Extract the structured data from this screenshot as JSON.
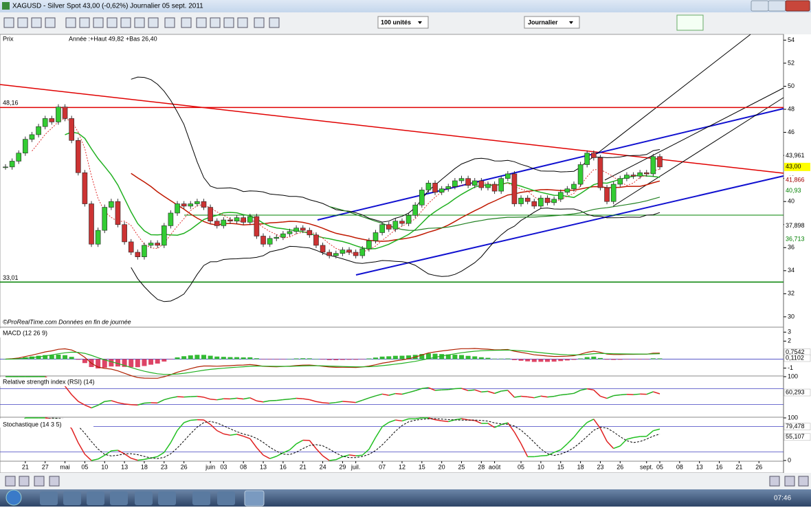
{
  "window": {
    "title": "XAGUSD - Silver Spot    43,00 (-0,62%)    Journalier  05 sept. 2011"
  },
  "toolbar": {
    "units": "100 unités",
    "period": "Journalier"
  },
  "chart_data": {
    "type": "candlestick",
    "title": "Prix",
    "subtitle": "Année :+Haut 49,82 +Bas 26,40",
    "annotation": "©ProRealTime.com  Données en fin de journée",
    "categories": [
      null,
      null,
      null,
      "21",
      null,
      null,
      "27",
      null,
      null,
      "mai",
      null,
      null,
      "05",
      null,
      null,
      "10",
      null,
      null,
      "13",
      null,
      null,
      "18",
      null,
      null,
      "23",
      null,
      null,
      "26",
      null,
      null,
      null,
      "juin",
      null,
      "03",
      null,
      null,
      "08",
      null,
      null,
      "13",
      null,
      null,
      "16",
      null,
      null,
      "21",
      null,
      null,
      "24",
      null,
      null,
      "29",
      null,
      "juil.",
      null,
      null,
      null,
      "07",
      null,
      null,
      "12",
      null,
      null,
      "15",
      null,
      null,
      "20",
      null,
      null,
      "25",
      null,
      null,
      "28",
      null,
      "août",
      null,
      null,
      null,
      "05",
      null,
      null,
      "10",
      null,
      null,
      "15",
      null,
      null,
      "18",
      null,
      null,
      "23",
      null,
      null,
      "26",
      null,
      null,
      null,
      "sept.",
      null,
      "05",
      null,
      null,
      "08",
      null,
      null,
      "13",
      null,
      null,
      "16",
      null,
      null,
      "21",
      null,
      null,
      "26"
    ],
    "values": [
      43.0,
      43.5,
      44.2,
      45.4,
      45.8,
      46.5,
      47.2,
      46.9,
      48.2,
      47.2,
      45.3,
      42.5,
      39.8,
      36.3,
      37.5,
      39.5,
      40.0,
      38.0,
      36.5,
      35.6,
      35.2,
      36.2,
      36.4,
      36.2,
      37.9,
      39.0,
      39.8,
      39.6,
      39.8,
      40.0,
      39.5,
      38.3,
      37.9,
      38.4,
      38.3,
      38.6,
      38.2,
      38.7,
      37.0,
      36.3,
      36.8,
      36.9,
      37.2,
      37.4,
      37.7,
      37.5,
      37.1,
      36.2,
      35.6,
      35.3,
      35.5,
      35.8,
      35.6,
      35.3,
      35.9,
      36.6,
      37.3,
      38.0,
      37.6,
      38.3,
      38.1,
      38.8,
      39.7,
      41.0,
      41.6,
      40.8,
      41.1,
      41.3,
      41.8,
      42.0,
      41.4,
      41.8,
      41.2,
      41.5,
      40.9,
      42.0,
      42.4,
      39.8,
      40.3,
      40.0,
      39.6,
      40.3,
      39.9,
      40.2,
      40.8,
      41.1,
      41.5,
      43.2,
      44.2,
      43.8,
      41.2,
      40.0,
      41.5,
      42.0,
      42.3,
      42.2,
      42.5,
      42.4,
      43.9,
      43.0,
      null,
      null,
      null,
      null,
      null,
      null,
      null,
      null,
      null,
      null,
      null,
      null,
      null,
      null,
      null
    ],
    "ylim": [
      29.1,
      54.5
    ],
    "yticks": [
      30,
      32,
      34,
      36,
      38,
      40,
      42,
      44,
      46,
      48,
      50,
      52,
      54
    ],
    "level_labels": [
      {
        "value": 48.16,
        "label": "48,16",
        "color": "#e00000"
      },
      {
        "value": 33.01,
        "label": "33,01",
        "color": "#008000"
      }
    ],
    "price_labels": [
      {
        "value": 43.961,
        "label": "43,961",
        "color": "#000000",
        "fill": "#ffffff"
      },
      {
        "value": 43.0,
        "label": "43,00",
        "color": "#000000",
        "fill": "#ffff00"
      },
      {
        "value": 41.866,
        "label": "41,866",
        "color": "#a00000",
        "fill": "#ffffff"
      },
      {
        "value": 40.93,
        "label": "40,93",
        "color": "#008000",
        "fill": "#ffffff"
      },
      {
        "value": 37.898,
        "label": "37,898",
        "color": "#000000",
        "fill": "#ffffff"
      },
      {
        "value": 36.713,
        "label": "36,713",
        "color": "#008000",
        "fill": "#ffffff"
      }
    ]
  },
  "indicators": {
    "macd": {
      "title": "MACD (12 26 9)",
      "ylim": [
        -1.8,
        3.4
      ],
      "yticks": [
        3,
        2,
        -1
      ],
      "value_labels": [
        {
          "value": 0.7542,
          "label": "0,7542"
        },
        {
          "value": 0.1102,
          "label": "0,1102"
        }
      ]
    },
    "rsi": {
      "title": "Relative strength index (RSI) (14)",
      "ylim": [
        0,
        100
      ],
      "yticks": [
        100
      ],
      "value_labels": [
        {
          "value": 60.293,
          "label": "60,293"
        }
      ]
    },
    "stoch": {
      "title": "Stochastique (14 3 5)",
      "ylim": [
        0,
        100
      ],
      "yticks": [
        100,
        0
      ],
      "value_labels": [
        {
          "value": 79.478,
          "label": "79,478"
        },
        {
          "value": 55.107,
          "label": "55,107"
        }
      ]
    }
  },
  "taskbar": {
    "time": "07:46"
  }
}
